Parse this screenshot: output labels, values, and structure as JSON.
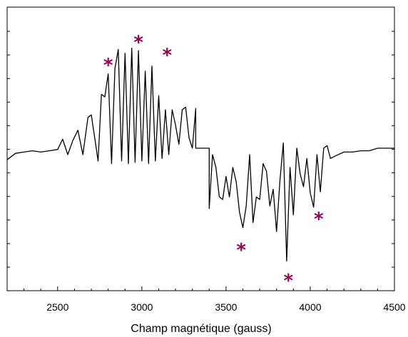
{
  "chart_data": {
    "type": "line",
    "xlabel": "Champ magnétique (gauss)",
    "ylabel": "",
    "title": "",
    "xlim": [
      2200,
      4500
    ],
    "ylim": [
      -1.0,
      1.0
    ],
    "x_ticks": [
      2500,
      3000,
      3500,
      4000,
      4500
    ],
    "y_ticks_labeled": false,
    "grid": false,
    "legend": "none",
    "line_color": "#000000",
    "marker_color": "#99004d",
    "series": [
      {
        "x": [
          2200,
          2250,
          2300,
          2350,
          2400,
          2450,
          2500,
          2530,
          2560,
          2590,
          2620,
          2650,
          2680,
          2700,
          2720,
          2740,
          2760,
          2780,
          2800,
          2820,
          2840,
          2860,
          2880,
          2900,
          2920,
          2940,
          2960,
          2980,
          3000,
          3020,
          3040,
          3060,
          3080,
          3100,
          3120,
          3140,
          3160,
          3180,
          3200,
          3220,
          3240,
          3260,
          3280,
          3300,
          3320,
          3320,
          3330,
          3400,
          3400,
          3420,
          3440,
          3460,
          3480,
          3500,
          3520,
          3540,
          3560,
          3580,
          3600,
          3620,
          3640,
          3660,
          3680,
          3700,
          3720,
          3740,
          3760,
          3780,
          3800,
          3820,
          3840,
          3860,
          3880,
          3900,
          3920,
          3940,
          3960,
          3980,
          4000,
          4020,
          4040,
          4060,
          4080,
          4100,
          4120,
          4150,
          4200,
          4250,
          4300,
          4350,
          4400,
          4450,
          4500
        ],
        "y": [
          -0.09,
          -0.04,
          -0.03,
          -0.02,
          -0.03,
          -0.02,
          -0.01,
          0.07,
          -0.05,
          0.06,
          0.14,
          -0.05,
          0.24,
          0.26,
          0.08,
          -0.1,
          0.42,
          0.4,
          0.58,
          -0.12,
          0.62,
          0.77,
          -0.1,
          0.74,
          -0.12,
          0.78,
          -0.11,
          0.76,
          -0.1,
          0.6,
          -0.12,
          0.64,
          -0.1,
          0.41,
          -0.08,
          0.3,
          -0.05,
          0.3,
          0.18,
          0.03,
          0.3,
          0.32,
          0.08,
          0.0,
          0.31,
          0.0,
          0.0,
          0.0,
          -0.47,
          -0.05,
          -0.15,
          -0.38,
          -0.4,
          -0.22,
          -0.38,
          -0.15,
          -0.26,
          -0.5,
          -0.62,
          -0.45,
          -0.05,
          -0.58,
          -0.38,
          -0.4,
          -0.12,
          -0.18,
          -0.45,
          -0.32,
          -0.65,
          -0.25,
          0.04,
          -0.88,
          -0.15,
          -0.52,
          0.0,
          -0.2,
          -0.3,
          -0.08,
          -0.35,
          -0.46,
          -0.05,
          -0.34,
          0.0,
          0.02,
          -0.08,
          -0.06,
          -0.03,
          -0.03,
          -0.02,
          -0.02,
          0.0,
          0.0,
          0.0
        ]
      }
    ],
    "markers": [
      {
        "symbol": "*",
        "x": 2800,
        "y": 0.66
      },
      {
        "symbol": "*",
        "x": 2980,
        "y": 0.84
      },
      {
        "symbol": "*",
        "x": 3150,
        "y": 0.74
      },
      {
        "symbol": "*",
        "x": 3590,
        "y": -0.78
      },
      {
        "symbol": "*",
        "x": 3870,
        "y": -1.02
      },
      {
        "symbol": "*",
        "x": 4050,
        "y": -0.54
      }
    ]
  }
}
